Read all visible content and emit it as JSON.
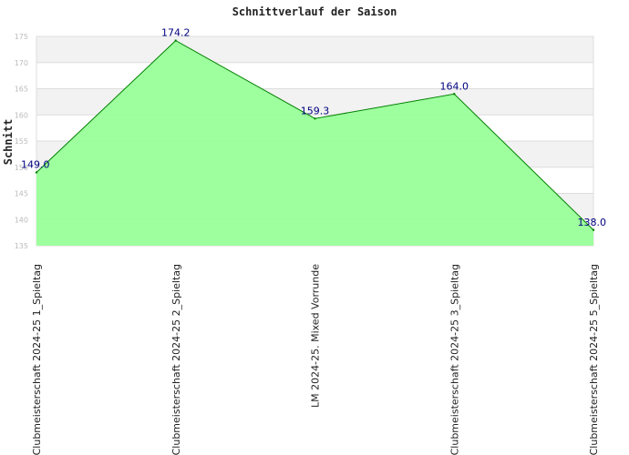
{
  "chart_data": {
    "type": "area",
    "title": "Schnittverlauf der Saison",
    "xlabel": "",
    "ylabel": "Schnitt",
    "categories": [
      "Clubmeisterschaft 2024-25   1_Spieltag",
      "Clubmeisterschaft 2024-25   2_Spieltag",
      "LM 2024-25. Mixed Vorrunde",
      "Clubmeisterschaft 2024-25   3_Spieltag",
      "Clubmeisterschaft 2024-25   5_Spieltag"
    ],
    "values": [
      149.0,
      174.2,
      159.3,
      164.0,
      138.0
    ],
    "data_labels": [
      "149.0",
      "174.2",
      "159.3",
      "164.0",
      "138.0"
    ],
    "ylim": [
      135,
      175
    ],
    "yticks": [
      135,
      140,
      145,
      150,
      155,
      160,
      165,
      170,
      175
    ],
    "grid": true,
    "grid_bands": true,
    "legend": "none",
    "colors": {
      "fill": "#99ff99",
      "line": "#008000",
      "band": "#f2f2f2",
      "gridline": "#dddddd",
      "data_label": "#000080"
    }
  }
}
